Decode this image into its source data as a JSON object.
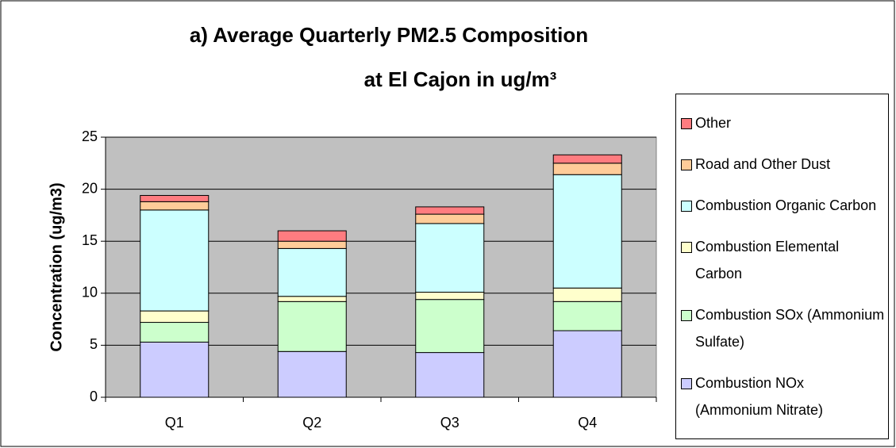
{
  "chart_data": {
    "type": "stacked_bar",
    "title": [
      "a) Average Quarterly PM2.5 Composition",
      "at El Cajon in ug/m³"
    ],
    "y_label": "Concentration (ug/m3)",
    "categories": [
      "Q1",
      "Q2",
      "Q3",
      "Q4"
    ],
    "series": [
      {
        "name": "Combustion NOx (Ammonium Nitrate)",
        "color": "#ccccff",
        "values": [
          5.3,
          4.4,
          4.3,
          6.4
        ]
      },
      {
        "name": "Combustion SOx (Ammonium Sulfate)",
        "color": "#ccffcc",
        "values": [
          1.9,
          4.8,
          5.1,
          2.8
        ]
      },
      {
        "name": "Combustion Elemental Carbon",
        "color": "#ffffcc",
        "values": [
          1.1,
          0.5,
          0.7,
          1.3
        ]
      },
      {
        "name": "Combustion Organic Carbon",
        "color": "#ccffff",
        "values": [
          9.7,
          4.6,
          6.6,
          10.9
        ]
      },
      {
        "name": "Road and Other Dust",
        "color": "#ffcc99",
        "values": [
          0.8,
          0.7,
          0.9,
          1.1
        ]
      },
      {
        "name": "Other",
        "color": "#ff7c80",
        "values": [
          0.6,
          1.0,
          0.7,
          0.8
        ]
      }
    ],
    "ylim": [
      0,
      25
    ],
    "yticks": [
      0,
      5,
      10,
      15,
      20,
      25
    ],
    "grid": true
  }
}
